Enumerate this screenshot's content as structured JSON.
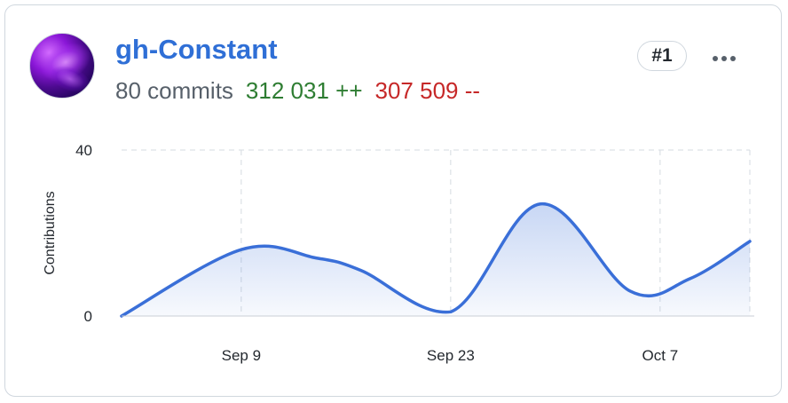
{
  "user": {
    "username": "gh-Constant",
    "commits_text": "80 commits",
    "additions_text": "312 031 ++",
    "deletions_text": "307 509 --",
    "rank": "#1"
  },
  "menu": {
    "icon": "kebab-horizontal-icon"
  },
  "colors": {
    "link": "#2f6fd6",
    "additions": "#2e7d32",
    "deletions": "#c62828",
    "line": "#3a6fd8"
  },
  "chart_data": {
    "type": "area",
    "ylabel": "Contributions",
    "xlabel": "",
    "ylim": [
      0,
      40
    ],
    "yticks": [
      "0",
      "40"
    ],
    "xticks": [
      {
        "label": "Sep 9",
        "day": 9
      },
      {
        "label": "Sep 23",
        "day": 23
      },
      {
        "label": "Oct 7",
        "day": 37
      }
    ],
    "grid": true,
    "series": [
      {
        "x": [
          1,
          9,
          14,
          17,
          23,
          29,
          35,
          39,
          43
        ],
        "y": [
          0,
          16,
          14,
          11,
          1,
          27,
          6,
          9,
          18
        ]
      }
    ]
  }
}
